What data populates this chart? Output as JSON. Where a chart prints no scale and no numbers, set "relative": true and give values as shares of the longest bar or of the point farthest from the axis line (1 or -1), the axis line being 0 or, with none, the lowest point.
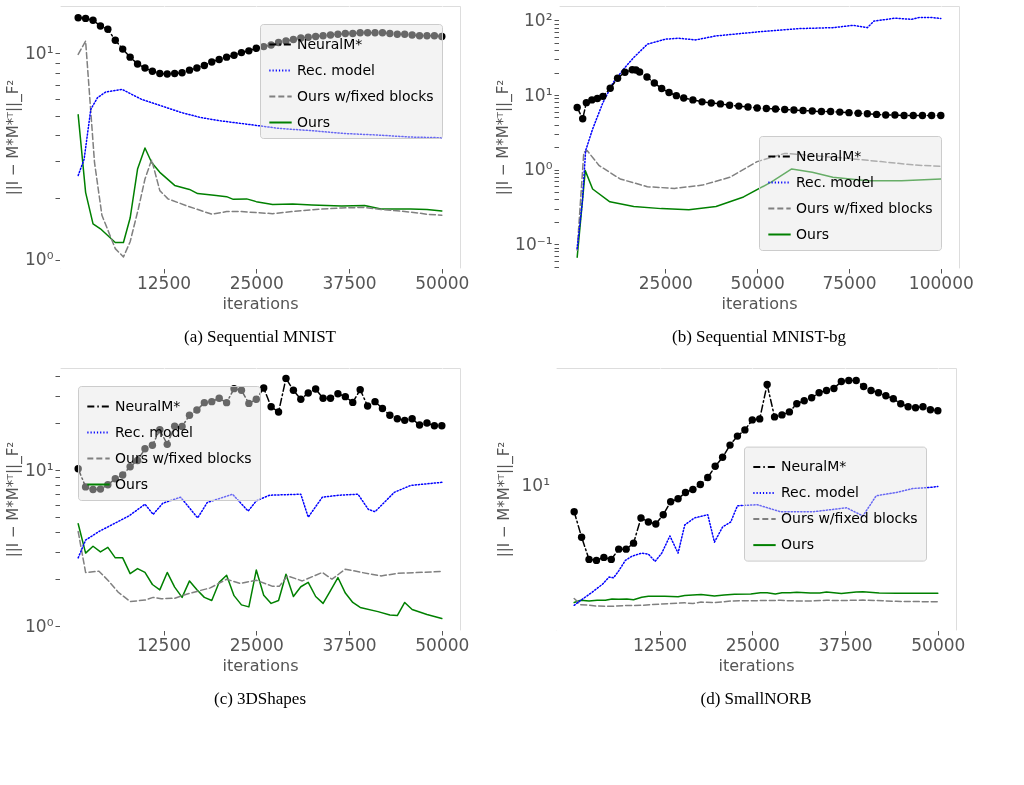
{
  "chart_data": [
    {
      "type": "line",
      "title": "(a) Sequential MNIST",
      "xlabel": "iterations",
      "ylabel": "||I − M*M*ᵀ||_F²",
      "log": true,
      "grid": true,
      "legend": "top right",
      "xlim": [
        -1450,
        52450
      ],
      "xticks": [
        12500,
        25000,
        37500,
        50000
      ],
      "ylim": [
        0.91,
        17
      ],
      "yticks": [
        {
          "value": 1,
          "label": "10⁰"
        },
        {
          "value": 2,
          "label": null
        },
        {
          "value": 3,
          "label": null
        },
        {
          "value": 4,
          "label": null
        },
        {
          "value": 5,
          "label": null
        },
        {
          "value": 6,
          "label": null
        },
        {
          "value": 7,
          "label": null
        },
        {
          "value": 8,
          "label": null
        },
        {
          "value": 9,
          "label": null
        },
        {
          "value": 10,
          "label": "10¹"
        }
      ],
      "series": [
        {
          "name": "NeuralM*",
          "color": "#000000",
          "line_style": "dashdot",
          "marker": "circle",
          "x": [
            1000,
            2000,
            3000,
            4000,
            5000,
            6000,
            7000,
            8000,
            9000,
            10000,
            11000,
            12000,
            13000,
            14000,
            15000,
            16000,
            17000,
            18000,
            19000,
            20000,
            21000,
            22000,
            23000,
            24000,
            25000,
            26000,
            27000,
            28000,
            29000,
            30000,
            31000,
            32000,
            33000,
            34000,
            35000,
            36000,
            37000,
            38000,
            39000,
            40000,
            41000,
            42000,
            43000,
            44000,
            45000,
            46000,
            47000,
            48000,
            49000,
            50000
          ],
          "values": [
            14.9,
            14.8,
            14.5,
            13.6,
            13.1,
            11.6,
            10.5,
            9.6,
            8.9,
            8.5,
            8.2,
            8.0,
            7.95,
            8.0,
            8.06,
            8.3,
            8.5,
            8.75,
            9.1,
            9.35,
            9.6,
            9.8,
            10.1,
            10.3,
            10.6,
            10.8,
            11.0,
            11.3,
            11.5,
            11.7,
            11.9,
            12.0,
            12.1,
            12.2,
            12.3,
            12.4,
            12.5,
            12.5,
            12.6,
            12.6,
            12.6,
            12.6,
            12.5,
            12.4,
            12.4,
            12.3,
            12.2,
            12.2,
            12.2,
            12.1
          ]
        },
        {
          "name": "Rec. model",
          "color": "#0000ff",
          "line_style": "dotted",
          "x": [
            1000,
            1800,
            2700,
            3600,
            4700,
            6900,
            9500,
            12200,
            14900,
            17500,
            20200,
            23700,
            28100,
            32500,
            36900,
            41400,
            45800,
            50000
          ],
          "values": [
            2.56,
            3.07,
            5.36,
            6.1,
            6.5,
            6.7,
            6.0,
            5.57,
            5.17,
            4.89,
            4.71,
            4.54,
            4.33,
            4.22,
            4.09,
            4.02,
            3.93,
            3.9
          ]
        },
        {
          "name": "Ours w/fixed blocks",
          "color": "#808080",
          "line_style": "dashed",
          "x": [
            1000,
            2000,
            3200,
            4200,
            6000,
            7100,
            8000,
            9100,
            10000,
            10900,
            12000,
            13100,
            15700,
            19000,
            21000,
            23000,
            25000,
            27200,
            29900,
            33000,
            36500,
            39600,
            41800,
            45800,
            48000,
            50000
          ],
          "values": [
            9.9,
            11.5,
            2.96,
            1.64,
            1.13,
            1.03,
            1.22,
            1.76,
            2.46,
            3.05,
            2.16,
            1.97,
            1.82,
            1.66,
            1.71,
            1.71,
            1.69,
            1.67,
            1.71,
            1.75,
            1.78,
            1.79,
            1.75,
            1.7,
            1.66,
            1.64
          ]
        },
        {
          "name": "Ours",
          "color": "#008000",
          "line_style": "solid",
          "x": [
            1000,
            2000,
            3000,
            4000,
            6000,
            7100,
            8000,
            9000,
            10000,
            10900,
            12000,
            14000,
            16000,
            17100,
            19300,
            21000,
            21900,
            23700,
            25000,
            27200,
            29900,
            32500,
            36500,
            39600,
            41800,
            45800,
            48000,
            50000
          ],
          "values": [
            5.04,
            2.12,
            1.49,
            1.41,
            1.21,
            1.21,
            1.59,
            2.75,
            3.48,
            2.96,
            2.65,
            2.29,
            2.19,
            2.09,
            2.05,
            2.02,
            1.96,
            1.97,
            1.91,
            1.85,
            1.86,
            1.84,
            1.82,
            1.83,
            1.76,
            1.76,
            1.75,
            1.72
          ]
        }
      ]
    },
    {
      "type": "line",
      "title": "(b) Sequential MNIST-bg",
      "xlabel": "iterations",
      "ylabel": "||I − M*M*ᵀ||_F²",
      "log": true,
      "grid": true,
      "legend": "bottom right",
      "xlim": [
        -3950,
        104950
      ],
      "xticks": [
        25000,
        50000,
        75000,
        100000
      ],
      "ylim": [
        0.048,
        156
      ],
      "yticks": [
        {
          "value": 0.05,
          "label": null
        },
        {
          "value": 0.06,
          "label": null
        },
        {
          "value": 0.07,
          "label": null
        },
        {
          "value": 0.08,
          "label": null
        },
        {
          "value": 0.09,
          "label": null
        },
        {
          "value": 0.1,
          "label": "10⁻¹"
        },
        {
          "value": 0.2,
          "label": null
        },
        {
          "value": 0.3,
          "label": null
        },
        {
          "value": 0.4,
          "label": null
        },
        {
          "value": 0.5,
          "label": null
        },
        {
          "value": 0.6,
          "label": null
        },
        {
          "value": 0.7,
          "label": null
        },
        {
          "value": 0.8,
          "label": null
        },
        {
          "value": 0.9,
          "label": null
        },
        {
          "value": 1,
          "label": "10⁰"
        },
        {
          "value": 2,
          "label": null
        },
        {
          "value": 3,
          "label": null
        },
        {
          "value": 4,
          "label": null
        },
        {
          "value": 5,
          "label": null
        },
        {
          "value": 6,
          "label": null
        },
        {
          "value": 7,
          "label": null
        },
        {
          "value": 8,
          "label": null
        },
        {
          "value": 9,
          "label": null
        },
        {
          "value": 10,
          "label": "10¹"
        },
        {
          "value": 20,
          "label": null
        },
        {
          "value": 30,
          "label": null
        },
        {
          "value": 40,
          "label": null
        },
        {
          "value": 50,
          "label": null
        },
        {
          "value": 60,
          "label": null
        },
        {
          "value": 70,
          "label": null
        },
        {
          "value": 80,
          "label": null
        },
        {
          "value": 90,
          "label": null
        },
        {
          "value": 100,
          "label": "10²"
        }
      ],
      "series": [
        {
          "name": "NeuralM*",
          "color": "#000000",
          "line_style": "dashdot",
          "marker": "circle",
          "x": [
            1000,
            2500,
            3500,
            5000,
            6500,
            8000,
            10000,
            12000,
            14000,
            16000,
            17000,
            18000,
            20000,
            22000,
            24000,
            26000,
            28000,
            30000,
            32500,
            35000,
            37500,
            40000,
            42500,
            45000,
            47500,
            50000,
            52500,
            55000,
            57500,
            60000,
            62500,
            65000,
            67500,
            70000,
            72500,
            75000,
            77500,
            80000,
            82500,
            85000,
            87500,
            90000,
            92500,
            95000,
            97500,
            100000
          ],
          "values": [
            6.8,
            4.8,
            7.9,
            8.6,
            9.0,
            9.6,
            12.3,
            16.8,
            20.2,
            21.8,
            21.6,
            20.3,
            17.4,
            14.5,
            12.2,
            10.8,
            9.8,
            9.1,
            8.6,
            8.1,
            7.8,
            7.6,
            7.3,
            7.1,
            6.9,
            6.7,
            6.6,
            6.5,
            6.4,
            6.3,
            6.2,
            6.1,
            6.0,
            6.0,
            5.9,
            5.8,
            5.7,
            5.6,
            5.5,
            5.4,
            5.4,
            5.3,
            5.3,
            5.3,
            5.3,
            5.3
          ]
        },
        {
          "name": "Rec. model",
          "color": "#0000ff",
          "line_style": "dotted",
          "x": [
            1000,
            2400,
            3300,
            5200,
            8000,
            10800,
            13600,
            16400,
            20100,
            25000,
            28500,
            33200,
            38800,
            50000,
            61300,
            70600,
            76200,
            80000,
            81800,
            87500,
            92100,
            94000,
            97800,
            100000
          ],
          "values": [
            0.087,
            0.37,
            1.8,
            3.5,
            7.9,
            14.7,
            22.2,
            31.8,
            48,
            56,
            57.7,
            54.8,
            62,
            70,
            77.6,
            80,
            86,
            80,
            98,
            107,
            103.5,
            109,
            109,
            106
          ]
        },
        {
          "name": "Ours w/fixed blocks",
          "color": "#808080",
          "line_style": "dashed",
          "x": [
            1000,
            2800,
            3700,
            7000,
            12700,
            20100,
            27500,
            35100,
            42600,
            50000,
            57500,
            65000,
            74300,
            83700,
            93000,
            100000
          ],
          "values": [
            0.083,
            1.7,
            1.8,
            1.13,
            0.75,
            0.59,
            0.56,
            0.62,
            0.79,
            1.28,
            1.65,
            1.54,
            1.42,
            1.28,
            1.15,
            1.11
          ]
        },
        {
          "name": "Ours",
          "color": "#008000",
          "line_style": "solid",
          "x": [
            1000,
            3200,
            5200,
            9900,
            16400,
            23900,
            31400,
            38800,
            46300,
            53800,
            59400,
            65000,
            70600,
            80000,
            89300,
            100000
          ],
          "values": [
            0.067,
            0.97,
            0.55,
            0.37,
            0.32,
            0.3,
            0.29,
            0.32,
            0.43,
            0.68,
            1.02,
            0.92,
            0.79,
            0.71,
            0.71,
            0.75
          ]
        }
      ]
    },
    {
      "type": "line",
      "title": "(c) 3DShapes",
      "xlabel": "iterations",
      "ylabel": "||I − M*M*ᵀ||_F²",
      "log": true,
      "grid": true,
      "legend": "top left",
      "xlim": [
        -1450,
        52450
      ],
      "xticks": [
        12500,
        25000,
        37500,
        50000
      ],
      "ylim": [
        0.946,
        45
      ],
      "yticks": [
        {
          "value": 1,
          "label": "10⁰"
        },
        {
          "value": 2,
          "label": null
        },
        {
          "value": 3,
          "label": null
        },
        {
          "value": 4,
          "label": null
        },
        {
          "value": 5,
          "label": null
        },
        {
          "value": 6,
          "label": null
        },
        {
          "value": 7,
          "label": null
        },
        {
          "value": 8,
          "label": null
        },
        {
          "value": 9,
          "label": null
        },
        {
          "value": 10,
          "label": "10¹"
        },
        {
          "value": 20,
          "label": null
        },
        {
          "value": 30,
          "label": null
        },
        {
          "value": 40,
          "label": null
        }
      ],
      "series": [
        {
          "name": "NeuralM*",
          "color": "#000000",
          "line_style": "dashdot",
          "marker": "circle",
          "x": [
            1000,
            2000,
            3000,
            4000,
            5000,
            6000,
            7000,
            8000,
            9000,
            10000,
            11000,
            12000,
            13000,
            14000,
            15000,
            16000,
            17000,
            18000,
            19000,
            20000,
            21000,
            22000,
            23000,
            24000,
            25000,
            26000,
            27000,
            28000,
            29000,
            30000,
            31000,
            32000,
            33000,
            34000,
            35000,
            36000,
            37000,
            38000,
            39000,
            40000,
            41000,
            42000,
            43000,
            44000,
            45000,
            46000,
            47000,
            48000,
            49000,
            50000
          ],
          "values": [
            10.2,
            7.8,
            7.5,
            7.55,
            8.05,
            8.8,
            9.3,
            10.5,
            11.5,
            13.7,
            14.4,
            18.1,
            14.6,
            19.1,
            19.0,
            22.4,
            24.2,
            27.0,
            27.4,
            28.8,
            27.0,
            33.2,
            32.4,
            26.7,
            28.4,
            33.5,
            25.4,
            23.5,
            38.6,
            32.4,
            28.4,
            31.1,
            33.0,
            28.8,
            28.8,
            30.8,
            29.5,
            27.1,
            32.7,
            25.7,
            27.4,
            24.8,
            22.4,
            21.3,
            20.8,
            21.3,
            19.4,
            20.0,
            19.2,
            19.2
          ]
        },
        {
          "name": "Rec. model",
          "color": "#0000ff",
          "line_style": "dotted",
          "x": [
            1000,
            2000,
            3800,
            6000,
            7800,
            10000,
            11100,
            12400,
            14800,
            17100,
            18400,
            21800,
            23900,
            25000,
            26800,
            31000,
            32000,
            33900,
            36100,
            38700,
            40100,
            41000,
            43600,
            45800,
            50000
          ],
          "values": [
            2.74,
            3.56,
            4.04,
            4.58,
            5.07,
            6.04,
            5.2,
            6.13,
            6.7,
            4.94,
            6.2,
            7.0,
            5.46,
            6.35,
            6.9,
            7.0,
            4.99,
            6.7,
            6.9,
            7.0,
            5.6,
            5.41,
            7.2,
            7.97,
            8.34
          ]
        },
        {
          "name": "Ours w/fixed blocks",
          "color": "#808080",
          "line_style": "dashed",
          "x": [
            1000,
            2000,
            3800,
            5100,
            6400,
            8000,
            10000,
            11100,
            12200,
            14000,
            15700,
            18800,
            21000,
            22800,
            25000,
            27200,
            28100,
            29200,
            31200,
            33900,
            35200,
            37000,
            39200,
            41800,
            44100,
            50000
          ],
          "values": [
            4.04,
            2.21,
            2.25,
            1.95,
            1.65,
            1.44,
            1.47,
            1.53,
            1.5,
            1.51,
            1.61,
            1.76,
            2.0,
            1.88,
            1.97,
            1.8,
            1.8,
            2.1,
            1.95,
            2.21,
            2.0,
            2.32,
            2.21,
            2.1,
            2.18,
            2.24
          ]
        },
        {
          "name": "Ours",
          "color": "#008000",
          "line_style": "solid",
          "x": [
            1000,
            2000,
            3000,
            4000,
            5000,
            6000,
            7000,
            8000,
            9000,
            10000,
            11000,
            12000,
            13000,
            14000,
            15000,
            16000,
            17000,
            18000,
            19000,
            20000,
            21000,
            22000,
            23000,
            24000,
            25000,
            26000,
            27000,
            28000,
            29000,
            30000,
            31000,
            32000,
            33000,
            34000,
            35000,
            36000,
            37000,
            38000,
            39000,
            41400,
            43000,
            44000,
            45000,
            46000,
            48000,
            50000
          ],
          "values": [
            4.53,
            2.94,
            3.25,
            2.99,
            3.2,
            2.74,
            2.74,
            2.17,
            2.34,
            2.21,
            1.85,
            1.71,
            2.21,
            1.78,
            1.53,
            1.95,
            1.71,
            1.53,
            1.46,
            1.91,
            2.12,
            1.57,
            1.37,
            1.33,
            2.29,
            1.58,
            1.4,
            1.46,
            2.15,
            1.55,
            1.79,
            1.91,
            1.55,
            1.4,
            1.69,
            2.05,
            1.63,
            1.42,
            1.32,
            1.24,
            1.18,
            1.17,
            1.42,
            1.28,
            1.19,
            1.12
          ]
        }
      ]
    },
    {
      "type": "line",
      "title": "(d) SmallNORB",
      "xlabel": "iterations",
      "ylabel": "||I − M*M*ᵀ||_F²",
      "grid": "x",
      "legend": "right",
      "relative": true,
      "xlim": [
        -1450,
        52450
      ],
      "xticks": [
        12500,
        25000,
        37500,
        50000
      ],
      "annotations": [
        "10¹"
      ],
      "series": [
        {
          "name": "NeuralM*",
          "color": "#000000",
          "line_style": "dashdot",
          "marker": "circle",
          "x": [
            1000,
            2000,
            3000,
            4000,
            5000,
            6000,
            7000,
            8000,
            9000,
            10000,
            11000,
            12000,
            13000,
            14000,
            15000,
            16000,
            17000,
            18000,
            19000,
            20000,
            21000,
            22000,
            23000,
            24000,
            25000,
            26000,
            27000,
            28000,
            29000,
            30000,
            31000,
            32000,
            33000,
            34000,
            35000,
            36000,
            37000,
            38000,
            39000,
            40000,
            41000,
            42000,
            43000,
            44000,
            45000,
            46000,
            47000,
            48000,
            49000,
            50000
          ],
          "values": [
            0.474,
            0.372,
            0.283,
            0.279,
            0.291,
            0.283,
            0.324,
            0.324,
            0.348,
            0.449,
            0.433,
            0.425,
            0.462,
            0.514,
            0.526,
            0.551,
            0.563,
            0.583,
            0.611,
            0.656,
            0.692,
            0.741,
            0.777,
            0.802,
            0.842,
            0.846,
            0.984,
            0.854,
            0.862,
            0.874,
            0.907,
            0.919,
            0.931,
            0.951,
            0.96,
            0.968,
            0.996,
            1,
            1,
            0.976,
            0.96,
            0.951,
            0.939,
            0.927,
            0.907,
            0.895,
            0.891,
            0.895,
            0.883,
            0.879
          ]
        },
        {
          "name": "Rec. model",
          "color": "#0000ff",
          "line_style": "dotted",
          "x": [
            1000,
            1900,
            3400,
            4800,
            5700,
            6300,
            7000,
            7900,
            8800,
            10100,
            11000,
            11900,
            12800,
            13900,
            15000,
            15900,
            17200,
            19000,
            19900,
            21000,
            22100,
            23000,
            25700,
            28800,
            33200,
            35500,
            37700,
            39900,
            41700,
            44400,
            46600,
            48800,
            50000
          ],
          "values": [
            0.099,
            0.119,
            0.151,
            0.183,
            0.212,
            0.209,
            0.237,
            0.279,
            0.296,
            0.308,
            0.304,
            0.275,
            0.308,
            0.377,
            0.308,
            0.421,
            0.449,
            0.462,
            0.352,
            0.413,
            0.433,
            0.498,
            0.502,
            0.474,
            0.474,
            0.482,
            0.49,
            0.457,
            0.538,
            0.551,
            0.567,
            0.571,
            0.575
          ]
        },
        {
          "name": "Ours w/fixed blocks",
          "color": "#808080",
          "line_style": "dashed",
          "x": [
            1000,
            1900,
            3000,
            3900,
            6100,
            7900,
            10100,
            11400,
            14100,
            15900,
            17000,
            18100,
            19900,
            22100,
            23500,
            26600,
            28800,
            30100,
            32800,
            35000,
            37200,
            39900,
            42600,
            44400,
            46600,
            50000
          ],
          "values": [
            0.126,
            0.101,
            0.1,
            0.096,
            0.095,
            0.098,
            0.099,
            0.102,
            0.106,
            0.109,
            0.106,
            0.112,
            0.11,
            0.116,
            0.117,
            0.118,
            0.119,
            0.117,
            0.116,
            0.119,
            0.118,
            0.12,
            0.117,
            0.115,
            0.114,
            0.113
          ]
        },
        {
          "name": "Ours",
          "color": "#008000",
          "line_style": "solid",
          "x": [
            1000,
            1900,
            3000,
            4100,
            5200,
            6100,
            7000,
            8100,
            9000,
            10100,
            11000,
            13200,
            15000,
            15900,
            18100,
            19900,
            21200,
            22600,
            24800,
            26100,
            27000,
            28100,
            29000,
            30100,
            31000,
            32800,
            34100,
            35000,
            37000,
            39000,
            39900,
            42100,
            44400,
            46600,
            50000
          ],
          "values": [
            0.11,
            0.119,
            0.116,
            0.119,
            0.119,
            0.124,
            0.123,
            0.124,
            0.121,
            0.131,
            0.135,
            0.135,
            0.133,
            0.138,
            0.142,
            0.136,
            0.14,
            0.143,
            0.144,
            0.149,
            0.149,
            0.144,
            0.149,
            0.149,
            0.151,
            0.148,
            0.148,
            0.152,
            0.146,
            0.152,
            0.153,
            0.148,
            0.147,
            0.147,
            0.147
          ]
        }
      ]
    }
  ]
}
